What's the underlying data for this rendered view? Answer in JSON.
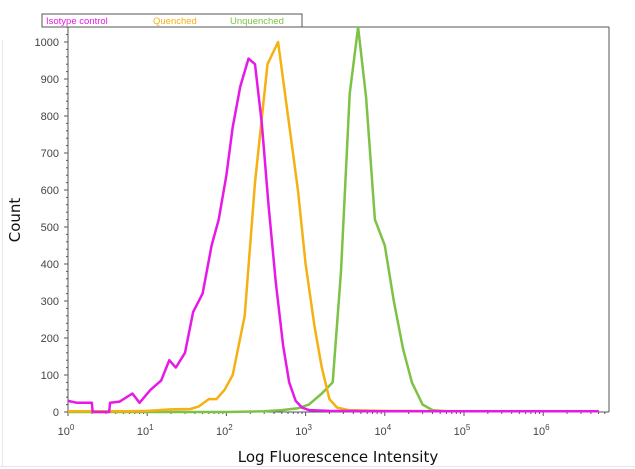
{
  "chart_data": {
    "type": "line",
    "title": "",
    "xlabel": "Log Fluorescence Intensity",
    "ylabel": "Count",
    "xscale": "log",
    "xlim": [
      1,
      6000000
    ],
    "ylim": [
      0,
      1050
    ],
    "x_ticks": [
      {
        "base": "10",
        "exp": "0",
        "value": 1
      },
      {
        "base": "10",
        "exp": "1",
        "value": 10
      },
      {
        "base": "10",
        "exp": "2",
        "value": 100
      },
      {
        "base": "10",
        "exp": "3",
        "value": 1000
      },
      {
        "base": "10",
        "exp": "4",
        "value": 10000
      },
      {
        "base": "10",
        "exp": "5",
        "value": 100000
      },
      {
        "base": "10",
        "exp": "6",
        "value": 1000000
      }
    ],
    "y_ticks": [
      0,
      100,
      200,
      300,
      400,
      500,
      600,
      700,
      800,
      900,
      1000
    ],
    "grid": false,
    "legend_position": "top-left",
    "series": [
      {
        "name": "Isotype control",
        "color": "#e619e6",
        "points": [
          [
            1,
            30
          ],
          [
            1.3,
            25
          ],
          [
            2,
            25
          ],
          [
            2.05,
            0
          ],
          [
            3.3,
            0
          ],
          [
            3.4,
            25
          ],
          [
            4.5,
            28
          ],
          [
            6.5,
            50
          ],
          [
            8,
            25
          ],
          [
            11,
            60
          ],
          [
            15,
            85
          ],
          [
            19,
            140
          ],
          [
            23,
            120
          ],
          [
            30,
            160
          ],
          [
            38,
            270
          ],
          [
            50,
            320
          ],
          [
            65,
            450
          ],
          [
            80,
            520
          ],
          [
            100,
            640
          ],
          [
            120,
            770
          ],
          [
            150,
            880
          ],
          [
            190,
            955
          ],
          [
            230,
            940
          ],
          [
            280,
            780
          ],
          [
            340,
            560
          ],
          [
            420,
            350
          ],
          [
            520,
            180
          ],
          [
            620,
            80
          ],
          [
            750,
            30
          ],
          [
            900,
            12
          ],
          [
            1100,
            5
          ],
          [
            2000,
            3
          ],
          [
            10000,
            2
          ],
          [
            100000,
            2
          ],
          [
            1000000,
            2
          ],
          [
            5000000,
            2
          ]
        ]
      },
      {
        "name": "Quenched",
        "color": "#f5b111",
        "points": [
          [
            1,
            2
          ],
          [
            5,
            2
          ],
          [
            10,
            3
          ],
          [
            20,
            7
          ],
          [
            35,
            8
          ],
          [
            45,
            15
          ],
          [
            60,
            35
          ],
          [
            75,
            35
          ],
          [
            95,
            60
          ],
          [
            120,
            100
          ],
          [
            170,
            260
          ],
          [
            230,
            620
          ],
          [
            330,
            940
          ],
          [
            450,
            1000
          ],
          [
            600,
            800
          ],
          [
            800,
            600
          ],
          [
            1000,
            400
          ],
          [
            1300,
            230
          ],
          [
            1600,
            120
          ],
          [
            2000,
            35
          ],
          [
            2500,
            12
          ],
          [
            3500,
            5
          ],
          [
            10000,
            3
          ],
          [
            100000,
            2
          ],
          [
            1000000,
            2
          ],
          [
            5000000,
            2
          ]
        ]
      },
      {
        "name": "Unquenched",
        "color": "#7ec245",
        "points": [
          [
            1,
            0
          ],
          [
            100,
            0
          ],
          [
            300,
            2
          ],
          [
            500,
            5
          ],
          [
            800,
            10
          ],
          [
            1100,
            20
          ],
          [
            1600,
            50
          ],
          [
            2200,
            80
          ],
          [
            2800,
            380
          ],
          [
            3600,
            860
          ],
          [
            4600,
            1040
          ],
          [
            5800,
            850
          ],
          [
            7500,
            520
          ],
          [
            10000,
            450
          ],
          [
            13000,
            300
          ],
          [
            17000,
            170
          ],
          [
            22000,
            80
          ],
          [
            30000,
            20
          ],
          [
            40000,
            5
          ],
          [
            60000,
            2
          ],
          [
            1000000,
            2
          ],
          [
            5000000,
            2
          ]
        ]
      }
    ]
  },
  "legend": {
    "items": [
      {
        "label": "Isotype control",
        "color": "#e619e6"
      },
      {
        "label": "Quenched",
        "color": "#f5b111"
      },
      {
        "label": "Unquenched",
        "color": "#7ec245"
      }
    ]
  },
  "axes": {
    "x_title": "Log Fluorescence Intensity",
    "y_title": "Count"
  }
}
